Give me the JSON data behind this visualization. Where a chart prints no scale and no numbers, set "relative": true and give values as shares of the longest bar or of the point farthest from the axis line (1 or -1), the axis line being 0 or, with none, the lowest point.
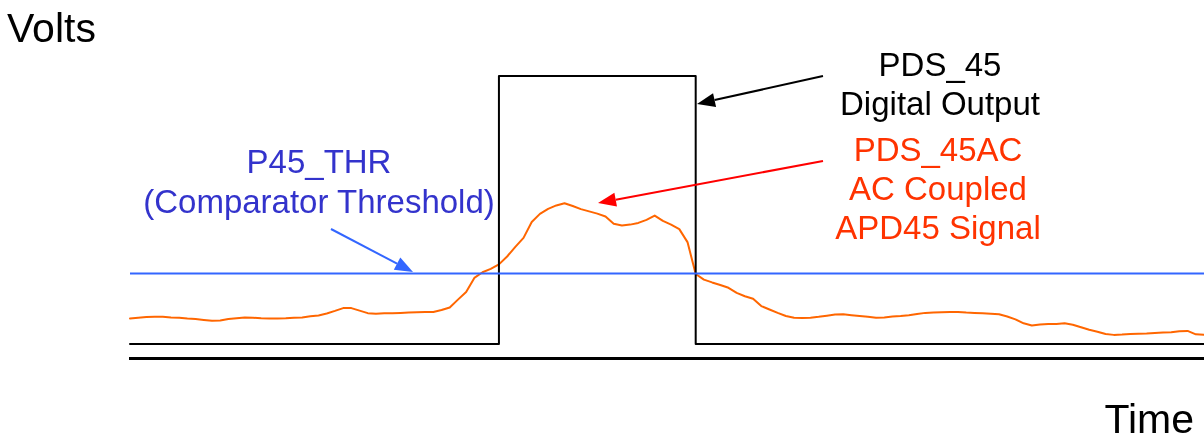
{
  "chart_data": {
    "type": "line",
    "relative": true,
    "xlabel": "Time",
    "ylabel": "Volts",
    "categories": [
      null,
      null,
      null,
      null,
      null,
      null,
      null,
      null,
      null,
      null,
      null,
      null,
      null,
      null,
      null,
      null,
      null,
      null,
      null,
      null,
      null,
      null,
      null,
      null,
      null,
      null,
      null,
      null,
      null,
      null,
      null,
      null,
      null,
      null,
      null,
      null,
      null,
      null,
      null,
      null,
      null,
      null,
      null,
      null,
      null,
      null,
      null,
      null,
      null,
      null,
      null,
      null,
      null,
      null,
      null,
      null,
      null,
      null,
      null,
      null,
      null,
      null,
      null,
      null,
      null,
      null,
      null,
      null,
      null,
      null,
      null,
      null,
      null,
      null,
      null,
      null,
      null,
      null,
      null,
      null,
      null,
      null,
      null,
      null,
      null,
      null,
      null,
      null,
      null,
      null,
      null,
      null,
      null,
      null,
      null,
      null,
      null,
      null,
      null,
      null,
      null,
      null,
      null,
      null,
      null,
      null,
      null,
      null,
      null,
      null,
      null,
      null,
      null,
      null,
      null,
      null,
      null,
      null,
      null,
      null,
      null,
      null,
      null,
      null,
      null,
      null,
      null,
      null,
      null,
      null,
      null,
      null
    ],
    "series": [
      {
        "name": "PDS_45\nDigital Output",
        "type": "step",
        "color": "#000000",
        "values": [
          0.05,
          0.05,
          0.05,
          0.05,
          0.05,
          0.05,
          0.05,
          0.05,
          0.05,
          0.05,
          0.05,
          0.05,
          0.05,
          0.05,
          0.05,
          0.05,
          0.05,
          0.05,
          0.05,
          0.05,
          0.05,
          0.05,
          0.05,
          0.05,
          0.05,
          0.05,
          0.05,
          0.05,
          0.05,
          0.05,
          0.05,
          0.05,
          0.05,
          0.05,
          0.05,
          0.05,
          0.05,
          0.05,
          0.05,
          0.05,
          0.05,
          0.05,
          0.05,
          0.05,
          0.05,
          1,
          1,
          1,
          1,
          1,
          1,
          1,
          1,
          1,
          1,
          1,
          1,
          1,
          1,
          1,
          1,
          1,
          1,
          1,
          1,
          1,
          1,
          1,
          1,
          0.05,
          0.05,
          0.05,
          0.05,
          0.05,
          0.05,
          0.05,
          0.05,
          0.05,
          0.05,
          0.05,
          0.05,
          0.05,
          0.05,
          0.05,
          0.05,
          0.05,
          0.05,
          0.05,
          0.05,
          0.05,
          0.05,
          0.05,
          0.05,
          0.05,
          0.05,
          0.05,
          0.05,
          0.05,
          0.05,
          0.05,
          0.05,
          0.05,
          0.05,
          0.05,
          0.05,
          0.05,
          0.05,
          0.05,
          0.05,
          0.05,
          0.05,
          0.05,
          0.05,
          0.05,
          0.05,
          0.05,
          0.05,
          0.05,
          0.05,
          0.05,
          0.05,
          0.05,
          0.05,
          0.05,
          0.05,
          0.05,
          0.05,
          0.05,
          0.05,
          0.05,
          0.05,
          0.05
        ]
      },
      {
        "name": "PDS_45AC\nAC Coupled\nAPD45 Signal",
        "type": "line",
        "color": "#ff6600",
        "values": [
          0.14,
          0.143,
          0.145,
          0.146,
          0.146,
          0.144,
          0.143,
          0.14,
          0.138,
          0.135,
          0.132,
          0.133,
          0.138,
          0.141,
          0.144,
          0.143,
          0.141,
          0.14,
          0.14,
          0.141,
          0.143,
          0.144,
          0.148,
          0.151,
          0.158,
          0.167,
          0.177,
          0.177,
          0.168,
          0.159,
          0.157,
          0.159,
          0.159,
          0.16,
          0.161,
          0.162,
          0.163,
          0.163,
          0.17,
          0.179,
          0.207,
          0.234,
          0.284,
          0.304,
          0.316,
          0.332,
          0.36,
          0.394,
          0.426,
          0.482,
          0.511,
          0.529,
          0.541,
          0.549,
          0.539,
          0.528,
          0.52,
          0.512,
          0.502,
          0.476,
          0.47,
          0.473,
          0.479,
          0.49,
          0.505,
          0.486,
          0.473,
          0.457,
          0.411,
          0.298,
          0.278,
          0.268,
          0.259,
          0.249,
          0.231,
          0.219,
          0.21,
          0.184,
          0.172,
          0.16,
          0.149,
          0.143,
          0.142,
          0.143,
          0.146,
          0.15,
          0.154,
          0.155,
          0.152,
          0.149,
          0.146,
          0.143,
          0.144,
          0.147,
          0.149,
          0.152,
          0.156,
          0.16,
          0.161,
          0.162,
          0.163,
          0.163,
          0.161,
          0.16,
          0.159,
          0.157,
          0.155,
          0.147,
          0.137,
          0.123,
          0.115,
          0.119,
          0.121,
          0.121,
          0.123,
          0.118,
          0.109,
          0.1,
          0.093,
          0.085,
          0.082,
          0.083,
          0.085,
          0.086,
          0.087,
          0.089,
          0.09,
          0.091,
          0.095,
          0.096,
          0.084,
          0.082
        ]
      }
    ],
    "ref_lines": [
      {
        "axis": "y",
        "value": 0.3,
        "label": "P45_THR\n(Comparator Threshold)",
        "color": "#3366ff"
      }
    ]
  }
}
